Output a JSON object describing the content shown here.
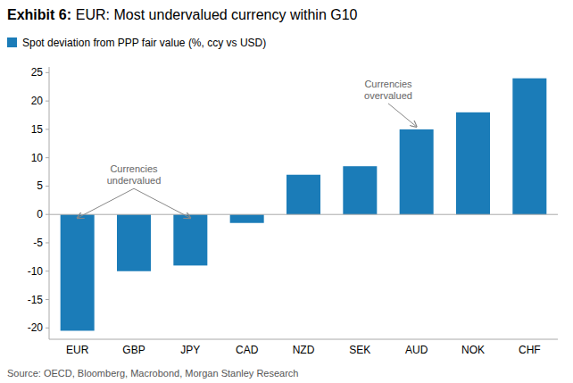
{
  "chart_data": {
    "type": "bar",
    "title": "Exhibit 6:",
    "subtitle": "EUR: Most undervalued currency within G10",
    "categories": [
      "EUR",
      "GBP",
      "JPY",
      "CAD",
      "NZD",
      "SEK",
      "AUD",
      "NOK",
      "CHF"
    ],
    "series": [
      {
        "name": "Spot deviation from PPP fair value (%, ccy vs USD)",
        "color": "#1B7CB8",
        "values": [
          -20.5,
          -10.0,
          -9.0,
          -1.5,
          7.0,
          8.5,
          15.0,
          18.0,
          24.0
        ]
      }
    ],
    "ylim": [
      -22,
      26
    ],
    "yticks": [
      -20,
      -15,
      -10,
      -5,
      0,
      5,
      10,
      15,
      20,
      25
    ],
    "grid": false,
    "legend": "upper left",
    "annotations": [
      {
        "text": "Currencies\nundervalued",
        "targets": [
          "EUR",
          "JPY"
        ]
      },
      {
        "text": "Currencies\novervalued",
        "targets": [
          "AUD"
        ]
      }
    ],
    "source": "Source: OECD, Bloomberg, Macrobond, Morgan Stanley Research"
  }
}
